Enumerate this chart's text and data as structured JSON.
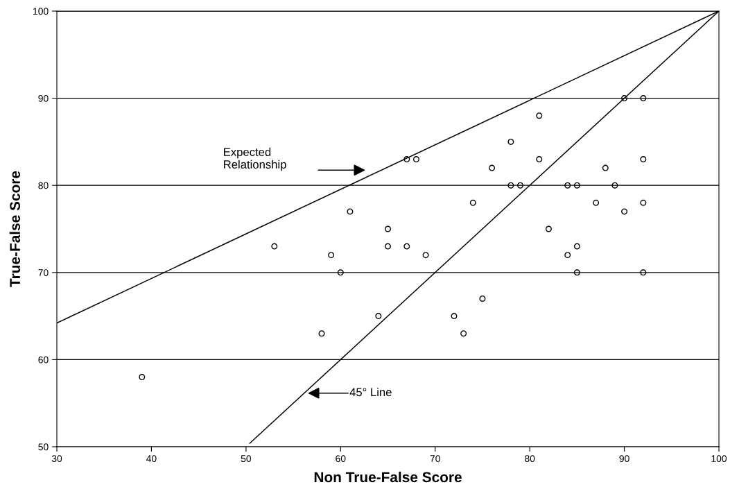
{
  "chart_data": {
    "type": "scatter",
    "xlabel": "Non True-False Score",
    "ylabel": "True-False Score",
    "xlim": [
      30,
      100
    ],
    "ylim": [
      50,
      100
    ],
    "xticks": [
      30,
      40,
      50,
      60,
      70,
      80,
      90,
      100
    ],
    "yticks": [
      50,
      60,
      70,
      80,
      90,
      100
    ],
    "grid": "y",
    "series": [
      {
        "marker": "circle",
        "color": "#000000",
        "x": [
          39,
          53,
          58,
          59,
          60,
          61,
          64,
          65,
          65,
          67,
          67,
          68,
          69,
          72,
          73,
          74,
          75,
          76,
          78,
          78,
          79,
          81,
          81,
          82,
          84,
          84,
          85,
          85,
          85,
          87,
          88,
          89,
          90,
          90,
          92,
          92,
          92,
          92
        ],
        "values": [
          58,
          73,
          63,
          72,
          70,
          77,
          65,
          75,
          73,
          83,
          73,
          83,
          72,
          65,
          63,
          78,
          67,
          82,
          85,
          80,
          80,
          88,
          83,
          75,
          80,
          72,
          80,
          73,
          70,
          78,
          82,
          80,
          90,
          77,
          90,
          83,
          78,
          70
        ]
      },
      {
        "type": "line",
        "color": "#000000",
        "x": [
          30,
          100
        ],
        "values": [
          64.2,
          100
        ]
      },
      {
        "type": "line",
        "color": "#000000",
        "x": [
          50.4,
          100
        ],
        "values": [
          50.4,
          100
        ]
      }
    ],
    "annotations": [
      "Expected\nRelationship",
      "45° Line"
    ]
  }
}
